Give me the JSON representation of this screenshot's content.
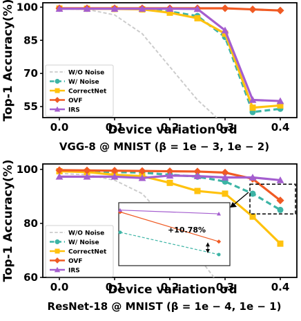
{
  "chart_data": [
    {
      "type": "line",
      "caption": "VGG-8 @ MNIST (β = 1e − 3, 1e − 2)",
      "xlabel": "Device variation σd",
      "ylabel": "Top-1 Accuracy(%)",
      "xlim": [
        -0.03,
        0.43
      ],
      "ylim": [
        50,
        102
      ],
      "xticks": [
        "0.0",
        "0.1",
        "0.2",
        "0.3",
        "0.4"
      ],
      "yticks": [
        "55",
        "70",
        "85",
        "100"
      ],
      "legend_position": "lower-left",
      "series": [
        {
          "name": "W/O Noise",
          "color": "#cccccc",
          "style": "dashed",
          "marker": "none",
          "x": [
            0.0,
            0.05,
            0.1,
            0.15,
            0.2,
            0.25,
            0.285
          ],
          "y": [
            99.2,
            99.0,
            96.5,
            88.0,
            73.0,
            58.0,
            50.0
          ]
        },
        {
          "name": "W/ Noise",
          "color": "#3cb4a5",
          "style": "dashed",
          "marker": "circle",
          "x": [
            0.0,
            0.05,
            0.1,
            0.15,
            0.2,
            0.25,
            0.3,
            0.35,
            0.4
          ],
          "y": [
            99.4,
            99.4,
            99.3,
            99.2,
            98.0,
            96.0,
            86.5,
            52.5,
            54.0
          ]
        },
        {
          "name": "CorrectNet",
          "color": "#ffc20e",
          "style": "solid",
          "marker": "square",
          "x": [
            0.0,
            0.05,
            0.1,
            0.15,
            0.2,
            0.25,
            0.3,
            0.35,
            0.4
          ],
          "y": [
            99.4,
            99.3,
            99.2,
            99.0,
            97.5,
            95.0,
            88.0,
            54.5,
            55.5
          ]
        },
        {
          "name": "OVF",
          "color": "#f05a23",
          "style": "solid",
          "marker": "diamond",
          "x": [
            0.0,
            0.05,
            0.1,
            0.15,
            0.2,
            0.25,
            0.3,
            0.35,
            0.4
          ],
          "y": [
            99.5,
            99.5,
            99.5,
            99.5,
            99.5,
            99.5,
            99.5,
            99.0,
            98.5
          ]
        },
        {
          "name": "IRS",
          "color": "#a45ecf",
          "style": "solid",
          "marker": "triangle",
          "x": [
            0.0,
            0.05,
            0.1,
            0.15,
            0.2,
            0.25,
            0.3,
            0.35,
            0.4
          ],
          "y": [
            99.3,
            99.3,
            99.3,
            99.3,
            99.3,
            99.2,
            89.5,
            58.0,
            57.5
          ]
        }
      ]
    },
    {
      "type": "line",
      "caption": "ResNet-18 @ MNIST (β = 1e − 4, 1e − 1)",
      "xlabel": "Device variation σd",
      "ylabel": "Top-1 Accuracy(%)",
      "xlim": [
        -0.03,
        0.43
      ],
      "ylim": [
        60,
        102
      ],
      "xticks": [
        "0.0",
        "0.1",
        "0.2",
        "0.3",
        "0.4"
      ],
      "yticks": [
        "60",
        "80",
        "100"
      ],
      "legend_position": "lower-left",
      "annotation": "+10.78%",
      "series": [
        {
          "name": "W/O Noise",
          "color": "#cccccc",
          "style": "dashed",
          "marker": "none",
          "x": [
            0.0,
            0.05,
            0.1,
            0.15,
            0.2,
            0.25,
            0.28
          ],
          "y": [
            98.5,
            98.0,
            96.0,
            91.0,
            80.0,
            68.0,
            60.0
          ]
        },
        {
          "name": "W/ Noise",
          "color": "#3cb4a5",
          "style": "dashed",
          "marker": "circle",
          "x": [
            0.0,
            0.05,
            0.1,
            0.15,
            0.2,
            0.25,
            0.3,
            0.35,
            0.4
          ],
          "y": [
            99.4,
            99.3,
            99.0,
            98.8,
            98.0,
            97.3,
            95.5,
            91.0,
            85.0
          ]
        },
        {
          "name": "CorrectNet",
          "color": "#ffc20e",
          "style": "solid",
          "marker": "square",
          "x": [
            0.0,
            0.05,
            0.1,
            0.15,
            0.2,
            0.25,
            0.3,
            0.35,
            0.4
          ],
          "y": [
            99.3,
            99.0,
            98.0,
            97.5,
            95.0,
            92.0,
            91.0,
            82.5,
            72.5
          ]
        },
        {
          "name": "OVF",
          "color": "#f05a23",
          "style": "solid",
          "marker": "diamond",
          "x": [
            0.0,
            0.05,
            0.1,
            0.15,
            0.2,
            0.25,
            0.3,
            0.35,
            0.4
          ],
          "y": [
            99.7,
            99.6,
            99.5,
            99.4,
            99.3,
            99.2,
            98.8,
            96.5,
            88.5
          ]
        },
        {
          "name": "IRS",
          "color": "#a45ecf",
          "style": "solid",
          "marker": "triangle",
          "x": [
            0.0,
            0.05,
            0.1,
            0.15,
            0.2,
            0.25,
            0.3,
            0.35,
            0.4
          ],
          "y": [
            97.3,
            97.3,
            97.3,
            96.8,
            97.7,
            97.5,
            97.0,
            97.0,
            96.0
          ]
        }
      ]
    }
  ]
}
